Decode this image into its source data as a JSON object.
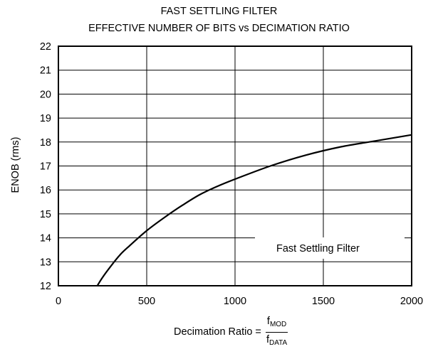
{
  "chart_data": {
    "type": "line",
    "title": "FAST SETTLING FILTER",
    "subtitle": "EFFECTIVE NUMBER OF BITS vs DECIMATION RATIO",
    "ylabel": "ENOB (rms)",
    "xlabel": {
      "prefix": "Decimation Ratio =",
      "numerator": "f",
      "numerator_sub": "MOD",
      "denominator": "f",
      "denominator_sub": "DATA"
    },
    "xlim": [
      0,
      2000
    ],
    "ylim": [
      12,
      22
    ],
    "x_ticks": [
      "0",
      "500",
      "1000",
      "1500",
      "2000"
    ],
    "y_ticks": [
      "12",
      "13",
      "14",
      "15",
      "16",
      "17",
      "18",
      "19",
      "20",
      "21",
      "22"
    ],
    "grid": true,
    "series": [
      {
        "name": "Fast Settling Filter",
        "x": [
          220,
          250,
          300,
          350,
          400,
          500,
          600,
          700,
          800,
          900,
          1000,
          1200,
          1400,
          1600,
          1800,
          2000
        ],
        "y": [
          12.0,
          12.35,
          12.85,
          13.3,
          13.65,
          14.3,
          14.85,
          15.35,
          15.8,
          16.15,
          16.45,
          17.0,
          17.45,
          17.8,
          18.05,
          18.3
        ]
      }
    ],
    "legend_placement": "lower-right"
  }
}
